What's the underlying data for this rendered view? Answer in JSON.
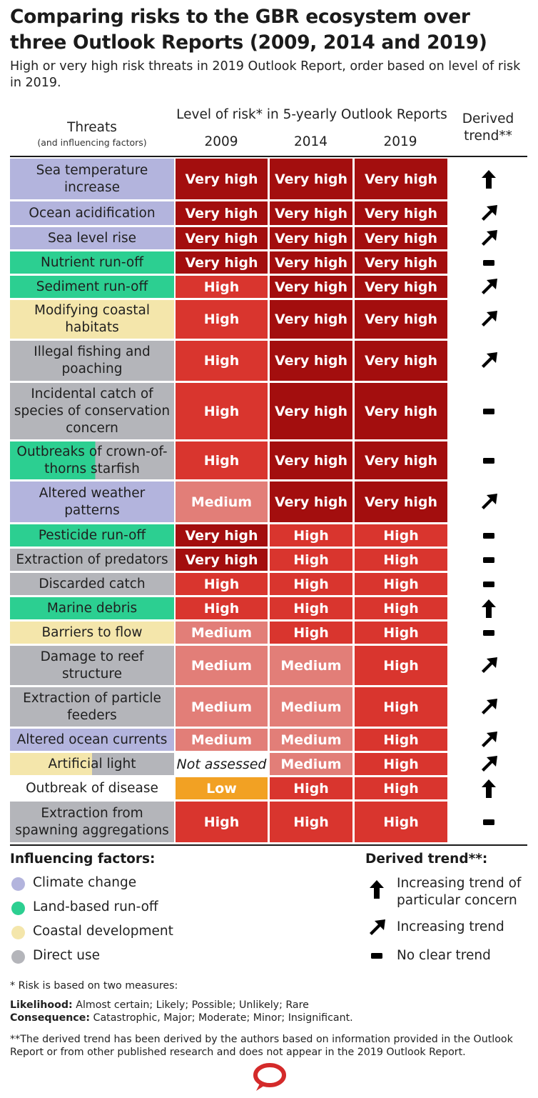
{
  "title": "Comparing risks to the GBR ecosystem over three Outlook Reports (2009, 2014 and 2019)",
  "subtitle": "High or very high risk threats in 2019 Outlook Report, order based on level of risk in 2019.",
  "colors": {
    "Climate change": "#b3b4dd",
    "Land-based run-off": "#2ccf91",
    "Coastal development": "#f4e6ab",
    "Direct use": "#b4b5ba",
    "Very high": "#a30e0e",
    "High": "#d9352e",
    "Medium": "#e27e78",
    "Low": "#f2a123",
    "Not assessed": "#ffffff"
  },
  "header": {
    "threats": "Threats",
    "threats_sub": "(and influencing factors)",
    "level": "Level of risk* in 5-yearly Outlook Reports",
    "derived": "Derived trend**"
  },
  "chart_data": {
    "type": "table",
    "columns": [
      "2009",
      "2014",
      "2019"
    ],
    "rows": [
      {
        "threat": "Sea temperature increase",
        "factor": "Climate change",
        "factor2": null,
        "split": null,
        "r2009": "Very high",
        "r2014": "Very high",
        "r2019": "Very high",
        "trend": "Increasing trend of particular concern"
      },
      {
        "threat": "Ocean acidification",
        "factor": "Climate change",
        "factor2": null,
        "split": null,
        "r2009": "Very high",
        "r2014": "Very high",
        "r2019": "Very high",
        "trend": "Increasing trend"
      },
      {
        "threat": "Sea level rise",
        "factor": "Climate change",
        "factor2": null,
        "split": null,
        "r2009": "Very high",
        "r2014": "Very high",
        "r2019": "Very high",
        "trend": "Increasing trend"
      },
      {
        "threat": "Nutrient run-off",
        "factor": "Land-based run-off",
        "factor2": null,
        "split": null,
        "r2009": "Very high",
        "r2014": "Very high",
        "r2019": "Very high",
        "trend": "No clear trend"
      },
      {
        "threat": "Sediment run-off",
        "factor": "Land-based run-off",
        "factor2": null,
        "split": null,
        "r2009": "High",
        "r2014": "Very high",
        "r2019": "Very high",
        "trend": "Increasing trend"
      },
      {
        "threat": "Modifying coastal habitats",
        "factor": "Coastal development",
        "factor2": null,
        "split": null,
        "r2009": "High",
        "r2014": "Very high",
        "r2019": "Very high",
        "trend": "Increasing trend"
      },
      {
        "threat": "Illegal fishing and poaching",
        "factor": "Direct use",
        "factor2": null,
        "split": null,
        "r2009": "High",
        "r2014": "Very high",
        "r2019": "Very high",
        "trend": "Increasing trend"
      },
      {
        "threat": "Incidental catch of species of conservation concern",
        "factor": "Direct use",
        "factor2": null,
        "split": null,
        "r2009": "High",
        "r2014": "Very high",
        "r2019": "Very high",
        "trend": "No clear trend"
      },
      {
        "threat": "Outbreaks of crown-of-thorns starfish",
        "factor": "Land-based run-off",
        "factor2": "Direct use",
        "split": 0.52,
        "r2009": "High",
        "r2014": "Very high",
        "r2019": "Very high",
        "trend": "No clear trend"
      },
      {
        "threat": "Altered weather patterns",
        "factor": "Climate change",
        "factor2": null,
        "split": null,
        "r2009": "Medium",
        "r2014": "Very high",
        "r2019": "Very high",
        "trend": "Increasing trend"
      },
      {
        "threat": "Pesticide run-off",
        "factor": "Land-based run-off",
        "factor2": null,
        "split": null,
        "r2009": "Very high",
        "r2014": "High",
        "r2019": "High",
        "trend": "No clear trend"
      },
      {
        "threat": "Extraction of predators",
        "factor": "Direct use",
        "factor2": null,
        "split": null,
        "r2009": "Very high",
        "r2014": "High",
        "r2019": "High",
        "trend": "No clear trend"
      },
      {
        "threat": "Discarded catch",
        "factor": "Direct use",
        "factor2": null,
        "split": null,
        "r2009": "High",
        "r2014": "High",
        "r2019": "High",
        "trend": "No clear trend"
      },
      {
        "threat": "Marine debris",
        "factor": "Land-based run-off",
        "factor2": null,
        "split": null,
        "r2009": "High",
        "r2014": "High",
        "r2019": "High",
        "trend": "Increasing trend of particular concern"
      },
      {
        "threat": "Barriers to flow",
        "factor": "Coastal development",
        "factor2": null,
        "split": null,
        "r2009": "Medium",
        "r2014": "High",
        "r2019": "High",
        "trend": "No clear trend"
      },
      {
        "threat": "Damage to reef structure",
        "factor": "Direct use",
        "factor2": null,
        "split": null,
        "r2009": "Medium",
        "r2014": "Medium",
        "r2019": "High",
        "trend": "Increasing trend"
      },
      {
        "threat": "Extraction of particle feeders",
        "factor": "Direct use",
        "factor2": null,
        "split": null,
        "r2009": "Medium",
        "r2014": "Medium",
        "r2019": "High",
        "trend": "Increasing trend"
      },
      {
        "threat": "Altered ocean currents",
        "factor": "Climate change",
        "factor2": null,
        "split": null,
        "r2009": "Medium",
        "r2014": "Medium",
        "r2019": "High",
        "trend": "Increasing trend"
      },
      {
        "threat": "Artificial light",
        "factor": "Coastal development",
        "factor2": "Direct use",
        "split": 0.5,
        "r2009": "Not assessed",
        "r2014": "Medium",
        "r2019": "High",
        "trend": "Increasing trend"
      },
      {
        "threat": "Outbreak of disease",
        "factor": null,
        "factor2": null,
        "split": null,
        "r2009": "Low",
        "r2014": "High",
        "r2019": "High",
        "trend": "Increasing trend of particular concern"
      },
      {
        "threat": "Extraction from spawning aggregations",
        "factor": "Direct use",
        "factor2": null,
        "split": null,
        "r2009": "High",
        "r2014": "High",
        "r2019": "High",
        "trend": "No clear trend"
      }
    ]
  },
  "legend": {
    "factors_title": "Influencing factors:",
    "factors": [
      "Climate change",
      "Land-based run-off",
      "Coastal development",
      "Direct use"
    ],
    "trend_title": "Derived trend**:",
    "trends": [
      "Increasing trend of particular concern",
      "Increasing trend",
      "No clear trend"
    ]
  },
  "footnotes": {
    "risk_note": "* Risk is based on two measures:",
    "likelihood_label": "Likelihood:",
    "likelihood_values": "Almost certain; Likely; Possible; Unlikely; Rare",
    "consequence_label": "Consequence:",
    "consequence_values": "Catastrophic, Major; Moderate; Minor; Insignificant.",
    "trend_note": "**The derived trend has been derived by the authors based on information provided in the Outlook Report or from other published research and does not appear in the 2019 Outlook Report."
  },
  "logo": "speech-bubble-logo"
}
